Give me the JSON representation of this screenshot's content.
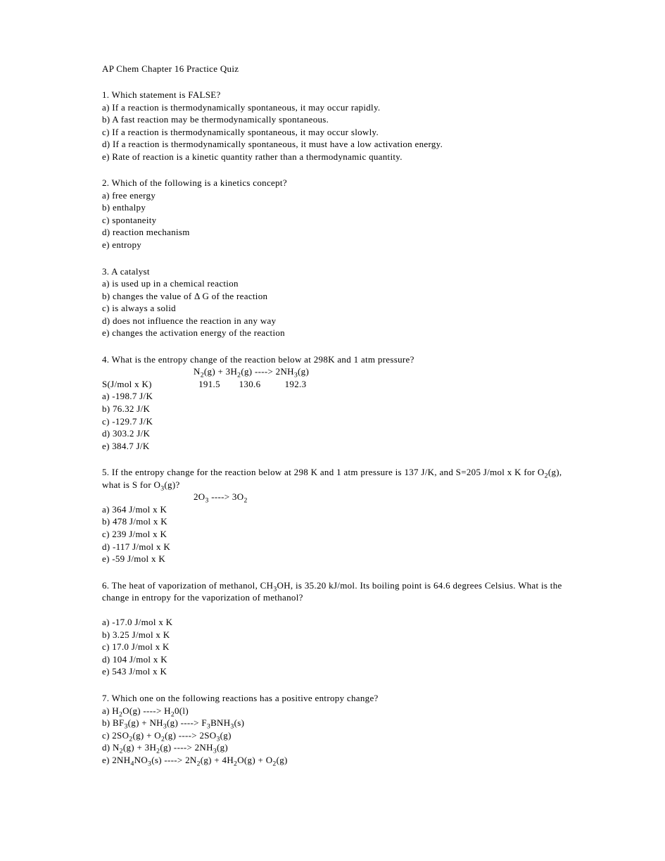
{
  "title": "AP Chem Chapter 16 Practice Quiz",
  "questions": [
    {
      "stem": "1. Which statement is FALSE?",
      "options": [
        "a) If a reaction is thermodynamically spontaneous, it may occur rapidly.",
        "b) A fast reaction may be thermodynamically spontaneous.",
        "c) If a reaction is thermodynamically spontaneous, it may occur slowly.",
        "d) If a reaction is thermodynamically spontaneous, it must have a low activation energy.",
        "e) Rate of reaction is a kinetic quantity rather than a thermodynamic quantity."
      ]
    },
    {
      "stem": "2. Which of the following is a kinetics concept?",
      "options": [
        "a) free energy",
        "b) enthalpy",
        "c) spontaneity",
        "d) reaction mechanism",
        "e) entropy"
      ]
    },
    {
      "stem": "3. A catalyst",
      "options": [
        "a) is used up in a chemical reaction",
        "b) changes the value of Δ G of the reaction",
        "c) is always a solid",
        "d) does not influence the reaction in any way",
        "e) changes the activation energy of the reaction"
      ]
    },
    {
      "stem": "4. What is the entropy change of the reaction below at 298K and 1 atm pressure?",
      "equation_html": "N<sub>2</sub>(g) + 3H<sub>2</sub>(g) ----> 2NH<sub>3</sub>(g)",
      "data_label": "S(J/mol x K)",
      "data_values": [
        "191.5",
        "130.6",
        "192.3"
      ],
      "data_spacing": [
        45,
        70,
        60
      ],
      "options": [
        "a) -198.7 J/K",
        "b) 76.32 J/K",
        "c) -129.7 J/K",
        "d) 303.2 J/K",
        "e) 384.7 J/K"
      ]
    },
    {
      "stem_html": "5. If the entropy change for the reaction below at 298 K and 1 atm pressure is 137 J/K,  and S=205 J/mol x K for O<sub>2</sub>(g), what is S for O<sub>3</sub>(g)?",
      "equation_html": "2O<sub>3</sub> ----> 3O<sub>2</sub>",
      "options": [
        "a) 364 J/mol x K",
        "b) 478 J/mol x K",
        "c) 239 J/mol x K",
        "d) -117 J/mol x K",
        "e) -59 J/mol x K"
      ]
    },
    {
      "stem_html": "6. The heat of vaporization of methanol, CH<sub>3</sub>OH, is 35.20 kJ/mol.  Its boiling point is 64.6 degrees Celsius.  What is the change in entropy for the vaporization of methanol?",
      "gap_after_stem": true,
      "options": [
        "a) -17.0 J/mol x K",
        "b) 3.25 J/mol x K",
        "c) 17.0 J/mol x K",
        "d) 104 J/mol x K",
        "e) 543 J/mol x K"
      ]
    },
    {
      "stem": "7. Which one on the following reactions has a positive entropy change?",
      "options_html": [
        "a) H<sub>2</sub>O(g) ----> H<sub>2</sub>0(l)",
        "b) BF<sub>3</sub>(g) + NH<sub>3</sub>(g) ----> F<sub>3</sub>BNH<sub>3</sub>(s)",
        "c) 2SO<sub>2</sub>(g) + O<sub>2</sub>(g) ----> 2SO<sub>3</sub>(g)",
        "d) N<sub>2</sub>(g) + 3H<sub>2</sub>(g) ----> 2NH<sub>3</sub>(g)",
        "e) 2NH<sub>4</sub>NO<sub>3</sub>(s) ----> 2N<sub>2</sub>(g) + 4H<sub>2</sub>O(g) + O<sub>2</sub>(g)"
      ]
    }
  ]
}
